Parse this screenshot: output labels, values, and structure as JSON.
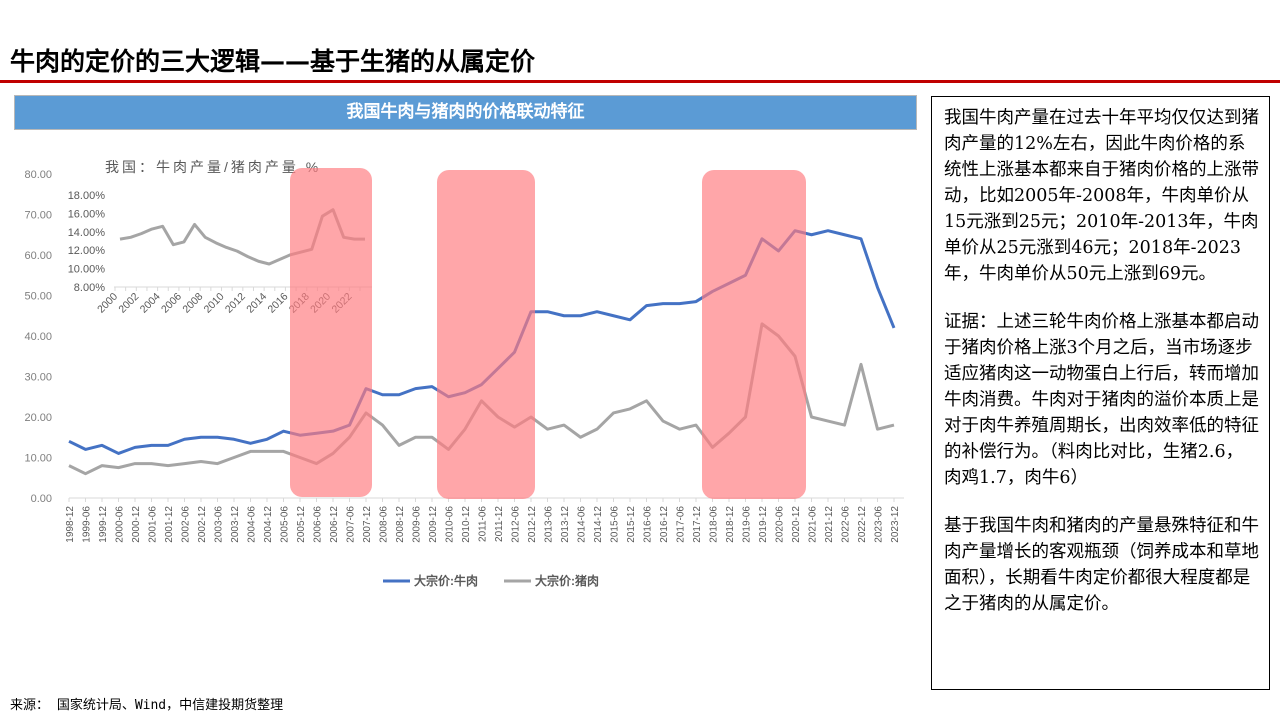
{
  "page": {
    "title": "牛肉的定价的三大逻辑——基于生猪的从属定价",
    "accent_color": "#c00000"
  },
  "chart_panel": {
    "banner_title": "我国牛肉与猪肉的价格联动特征",
    "banner_color": "#5b9bd5"
  },
  "chart_data": [
    {
      "type": "line",
      "title": "我国牛肉与猪肉的价格联动特征",
      "xlabel": "",
      "ylabel": "",
      "ylim": [
        0,
        80
      ],
      "yticks": [
        "0.00",
        "10.00",
        "20.00",
        "30.00",
        "40.00",
        "50.00",
        "60.00",
        "70.00",
        "80.00"
      ],
      "grid": false,
      "legend_position": "bottom",
      "categories": [
        "1998-12",
        "1999-06",
        "1999-12",
        "2000-06",
        "2000-12",
        "2001-06",
        "2001-12",
        "2002-06",
        "2002-12",
        "2003-06",
        "2003-12",
        "2004-06",
        "2004-12",
        "2005-06",
        "2005-12",
        "2006-06",
        "2006-12",
        "2007-06",
        "2007-12",
        "2008-06",
        "2008-12",
        "2009-06",
        "2009-12",
        "2010-06",
        "2010-12",
        "2011-06",
        "2011-12",
        "2012-06",
        "2012-12",
        "2013-06",
        "2013-12",
        "2014-06",
        "2014-12",
        "2015-06",
        "2015-12",
        "2016-06",
        "2016-12",
        "2017-06",
        "2017-12",
        "2018-06",
        "2018-12",
        "2019-06",
        "2019-12",
        "2020-06",
        "2020-12",
        "2021-06",
        "2021-12",
        "2022-06",
        "2022-12",
        "2023-06",
        "2023-12"
      ],
      "series": [
        {
          "name": "大宗价:牛肉",
          "color": "#4472c4",
          "values": [
            14,
            12,
            13,
            11,
            12.5,
            13,
            13,
            14.5,
            15,
            15,
            14.5,
            13.5,
            14.5,
            16.5,
            15.5,
            16,
            16.5,
            18,
            27,
            25.5,
            25.5,
            27,
            27.5,
            25,
            26,
            28,
            32,
            36,
            46,
            46,
            45,
            45,
            46,
            45,
            44,
            47.5,
            48,
            48,
            48.5,
            51,
            53,
            55,
            64,
            61,
            66,
            65,
            66,
            65,
            64,
            52,
            42
          ]
        },
        {
          "name": "大宗价:猪肉",
          "color": "#a5a5a5",
          "values": [
            8,
            6,
            8,
            7.5,
            8.5,
            8.5,
            8,
            8.5,
            9,
            8.5,
            10,
            11.5,
            11.5,
            11.5,
            10,
            8.5,
            11,
            15,
            21,
            18,
            13,
            15,
            15,
            12,
            17,
            24,
            20,
            17.5,
            20,
            17,
            18,
            15,
            17,
            21,
            22,
            24,
            19,
            17,
            18,
            12.5,
            16,
            20,
            43,
            40,
            35,
            20,
            19,
            18,
            33,
            17,
            18
          ]
        }
      ],
      "highlight_periods": [
        {
          "from": "2005-06",
          "to": "2007-12"
        },
        {
          "from": "2010-06",
          "to": "2012-12"
        },
        {
          "from": "2018-06",
          "to": "2020-12"
        }
      ],
      "highlight_color": "#ff7c80"
    },
    {
      "type": "line",
      "title": "我国：牛肉产量/猪肉产量  %",
      "xlabel": "",
      "ylabel": "",
      "ylim": [
        8,
        18
      ],
      "yticks": [
        "8.00%",
        "10.00%",
        "12.00%",
        "14.00%",
        "16.00%",
        "18.00%"
      ],
      "xticks": [
        "2000",
        "2002",
        "2004",
        "2006",
        "2008",
        "2010",
        "2012",
        "2014",
        "2016",
        "2018",
        "2020",
        "2022"
      ],
      "categories": [
        "2000",
        "2001",
        "2002",
        "2003",
        "2004",
        "2005",
        "2006",
        "2007",
        "2008",
        "2009",
        "2010",
        "2011",
        "2012",
        "2013",
        "2014",
        "2015",
        "2016",
        "2017",
        "2018",
        "2019",
        "2020",
        "2021",
        "2022",
        "2023"
      ],
      "series": [
        {
          "name": "牛肉产量/猪肉产量",
          "color": "#a5a5a5",
          "values": [
            13.2,
            13.4,
            13.8,
            14.3,
            14.6,
            12.6,
            12.9,
            14.8,
            13.4,
            12.8,
            12.3,
            11.9,
            11.3,
            10.8,
            10.5,
            11.0,
            11.5,
            11.8,
            12.1,
            15.7,
            16.4,
            13.4,
            13.2,
            13.2
          ]
        }
      ],
      "grid": false
    }
  ],
  "legend": {
    "beef_label": "大宗价:牛肉",
    "pork_label": "大宗价:猪肉"
  },
  "text_box": {
    "paragraphs": [
      "我国牛肉产量在过去十年平均仅仅达到猪肉产量的12%左右，因此牛肉价格的系统性上涨基本都来自于猪肉价格的上涨带动，比如2005年-2008年，牛肉单价从15元涨到25元；2010年-2013年，牛肉单价从25元涨到46元；2018年-2023年，牛肉单价从50元上涨到69元。",
      "证据：上述三轮牛肉价格上涨基本都启动于猪肉价格上涨3个月之后，当市场逐步适应猪肉这一动物蛋白上行后，转而增加牛肉消费。牛肉对于猪肉的溢价本质上是对于肉牛养殖周期长，出肉效率低的特征的补偿行为。（料肉比对比，生猪2.6，肉鸡1.7，肉牛6）",
      "基于我国牛肉和猪肉的产量悬殊特征和牛肉产量增长的客观瓶颈（饲养成本和草地面积），长期看牛肉定价都很大程度都是之于猪肉的从属定价。"
    ]
  },
  "source": "来源：  国家统计局、Wind，中信建投期货整理"
}
